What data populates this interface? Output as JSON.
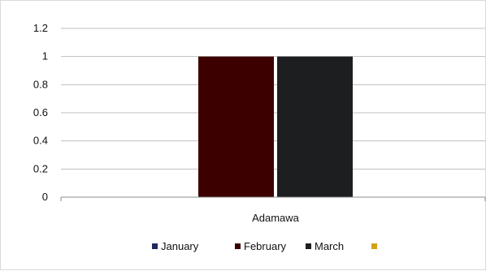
{
  "chart_data": {
    "type": "bar",
    "categories": [
      "Adamawa"
    ],
    "series": [
      {
        "name": "January",
        "values": [
          0
        ],
        "color": "#1f2a5c"
      },
      {
        "name": "February",
        "values": [
          1
        ],
        "color": "#3d0000"
      },
      {
        "name": "March",
        "values": [
          1
        ],
        "color": "#1c1e20"
      },
      {
        "name": "",
        "values": [
          0
        ],
        "color": "#d4a017"
      }
    ],
    "ylim": [
      0,
      1.2
    ],
    "yticks": [
      "0",
      "0.2",
      "0.4",
      "0.6",
      "0.8",
      "1",
      "1.2"
    ],
    "grid": true,
    "legend": "bottom"
  }
}
